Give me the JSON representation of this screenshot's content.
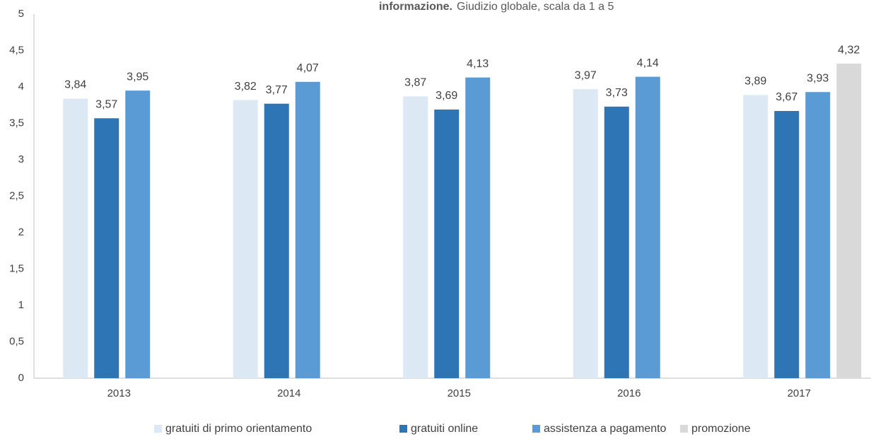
{
  "chart_data": {
    "type": "bar",
    "title": "informazione.",
    "subtitle": "Giudizio globale, scala da 1 a 5",
    "categories": [
      "2013",
      "2014",
      "2015",
      "2016",
      "2017"
    ],
    "series": [
      {
        "name": "gratuiti di primo orientamento",
        "color": "#dde8f5",
        "values": [
          3.84,
          3.82,
          3.87,
          3.97,
          3.89
        ],
        "value_labels": [
          "3,84",
          "3,82",
          "3,87",
          "3,97",
          "3,89"
        ]
      },
      {
        "name": "gratuiti online",
        "color": "#2e75b6",
        "values": [
          3.57,
          3.77,
          3.69,
          3.73,
          3.67
        ],
        "value_labels": [
          "3,57",
          "3,77",
          "3,69",
          "3,73",
          "3,67"
        ]
      },
      {
        "name": "assistenza a pagamento",
        "color": "#5b9bd5",
        "values": [
          3.95,
          4.07,
          4.13,
          4.14,
          3.93
        ],
        "value_labels": [
          "3,95",
          "4,07",
          "4,13",
          "4,14",
          "3,93"
        ]
      },
      {
        "name": "promozione",
        "color": "#d9d9d9",
        "values": [
          null,
          null,
          null,
          null,
          4.32
        ],
        "value_labels": [
          null,
          null,
          null,
          null,
          "4,32"
        ]
      }
    ],
    "ylim": [
      0,
      5
    ],
    "yticks": [
      0,
      {
        "value": 0.5,
        "label": "0,5"
      },
      1,
      {
        "value": 1.5,
        "label": "1,5"
      },
      2,
      {
        "value": 2.5,
        "label": "2,5"
      },
      3,
      {
        "value": 3.5,
        "label": "3,5"
      },
      4,
      {
        "value": 4.5,
        "label": "4,5"
      },
      5
    ],
    "grid": false,
    "legend": "bottom"
  }
}
